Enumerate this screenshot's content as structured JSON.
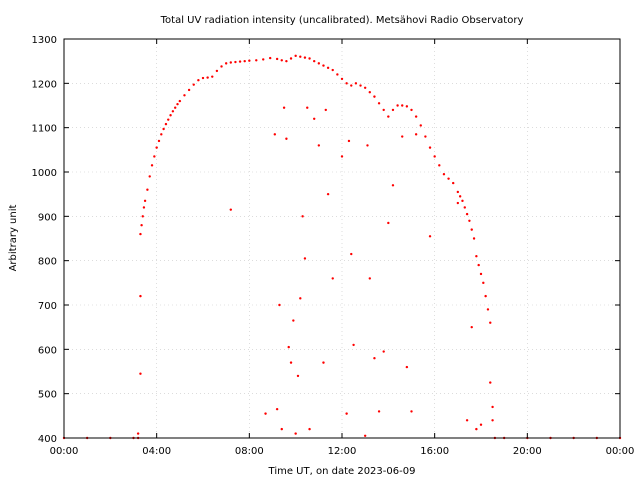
{
  "chart_data": {
    "type": "scatter",
    "title": "Total UV radiation intensity (uncalibrated). Metsähovi Radio Observatory",
    "xlabel": "Time UT, on date 2023-06-09",
    "ylabel": "Arbitrary unit",
    "xlim": [
      0,
      24
    ],
    "ylim": [
      400,
      1300
    ],
    "x_ticks": [
      0,
      4,
      8,
      12,
      16,
      20,
      24
    ],
    "x_tick_labels": [
      "00:00",
      "04:00",
      "08:00",
      "12:00",
      "16:00",
      "20:00",
      "00:00"
    ],
    "y_ticks": [
      400,
      500,
      600,
      700,
      800,
      900,
      1000,
      1100,
      1200,
      1300
    ],
    "y_tick_labels": [
      "400",
      "500",
      "600",
      "700",
      "800",
      "900",
      "1000",
      "1100",
      "1200",
      "1300"
    ],
    "grid": true,
    "marker_color": "#ff0000",
    "series": [
      {
        "x": [
          0.0,
          1.0,
          2.0,
          3.0,
          3.2,
          3.3,
          3.35,
          3.4,
          3.45,
          3.5,
          3.6,
          3.7,
          3.8,
          3.9,
          4.0,
          4.1,
          4.2,
          4.3,
          4.4,
          4.5,
          4.6,
          4.7,
          4.8,
          4.9,
          5.0,
          5.2,
          5.4,
          5.6,
          5.8,
          6.0,
          6.2,
          6.4,
          6.6,
          6.8,
          7.0,
          7.2,
          7.4,
          7.6,
          7.8,
          8.0,
          8.3,
          8.6,
          8.9,
          9.2,
          9.4,
          9.6,
          9.8,
          10.0,
          10.2,
          10.4,
          10.6,
          10.8,
          11.0,
          11.2,
          11.4,
          11.6,
          11.8,
          12.0,
          12.2,
          12.4,
          12.6,
          12.8,
          13.0,
          13.2,
          13.4,
          13.6,
          13.8,
          14.0,
          14.2,
          14.4,
          14.6,
          14.8,
          15.0,
          15.2,
          15.4,
          15.6,
          15.8,
          16.0,
          16.2,
          16.4,
          16.6,
          16.8,
          17.0,
          17.1,
          17.2,
          17.3,
          17.4,
          17.5,
          17.6,
          17.7,
          17.8,
          17.9,
          18.0,
          18.1,
          18.2,
          18.3,
          18.4,
          18.5,
          18.6,
          19.0,
          20.0,
          21.0,
          22.0,
          23.0,
          24.0
        ],
        "y": [
          400,
          400,
          400,
          400,
          400,
          860,
          880,
          900,
          920,
          935,
          960,
          990,
          1015,
          1035,
          1055,
          1070,
          1085,
          1097,
          1108,
          1118,
          1128,
          1137,
          1145,
          1153,
          1160,
          1173,
          1185,
          1197,
          1207,
          1212,
          1213,
          1215,
          1228,
          1238,
          1245,
          1247,
          1248,
          1249,
          1250,
          1251,
          1252,
          1254,
          1257,
          1255,
          1252,
          1250,
          1256,
          1262,
          1260,
          1258,
          1256,
          1250,
          1245,
          1240,
          1235,
          1230,
          1220,
          1210,
          1200,
          1195,
          1200,
          1195,
          1190,
          1180,
          1170,
          1155,
          1140,
          1125,
          1140,
          1150,
          1150,
          1148,
          1140,
          1125,
          1105,
          1080,
          1055,
          1035,
          1015,
          995,
          985,
          975,
          955,
          945,
          935,
          920,
          905,
          890,
          870,
          850,
          810,
          790,
          770,
          750,
          720,
          690,
          660,
          470,
          400,
          400,
          400,
          400,
          400,
          400,
          400
        ]
      },
      {
        "x": [
          3.2,
          3.3,
          3.3,
          7.2,
          8.7,
          9.1,
          9.2,
          9.3,
          9.4,
          9.5,
          9.6,
          9.7,
          9.8,
          9.9,
          10.0,
          10.1,
          10.2,
          10.3,
          10.4,
          10.5,
          10.6,
          10.8,
          11.0,
          11.2,
          11.3,
          11.4,
          11.6,
          12.0,
          12.2,
          12.3,
          12.4,
          12.5,
          13.0,
          13.1,
          13.2,
          13.4,
          13.6,
          13.8,
          14.0,
          14.2,
          14.6,
          14.8,
          15.0,
          15.2,
          15.8,
          17.0,
          17.4,
          17.6,
          17.8,
          18.0,
          18.4,
          18.5
        ],
        "y": [
          410,
          545,
          720,
          915,
          455,
          1085,
          465,
          700,
          420,
          1145,
          1075,
          605,
          570,
          665,
          410,
          540,
          715,
          900,
          805,
          1145,
          420,
          1120,
          1060,
          570,
          1140,
          950,
          760,
          1035,
          455,
          1070,
          815,
          610,
          405,
          1060,
          760,
          580,
          460,
          595,
          885,
          970,
          1080,
          560,
          460,
          1085,
          855,
          930,
          440,
          650,
          420,
          430,
          525,
          440
        ]
      }
    ]
  }
}
